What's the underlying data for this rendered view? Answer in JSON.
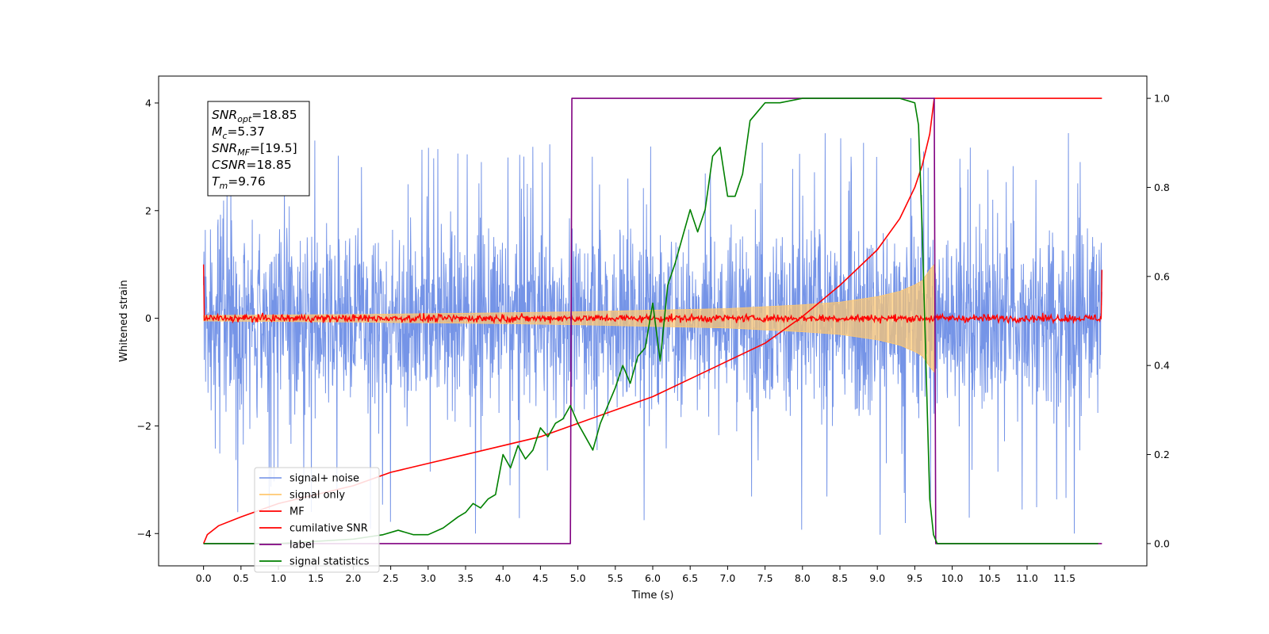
{
  "chart_data": {
    "type": "line",
    "xlabel": "Time (s)",
    "ylabel": "Whitened strain",
    "y2label": "",
    "xlim": [
      -0.6,
      12.6
    ],
    "ylim": [
      -4.6,
      4.5
    ],
    "y2lim": [
      -0.05,
      1.05
    ],
    "x_ticks": [
      "0.0",
      "0.5",
      "1.0",
      "1.5",
      "2.0",
      "2.5",
      "3.0",
      "3.5",
      "4.0",
      "4.5",
      "5.0",
      "5.5",
      "6.0",
      "6.5",
      "7.0",
      "7.5",
      "8.0",
      "8.5",
      "9.0",
      "9.5",
      "10.0",
      "10.5",
      "11.0",
      "11.5"
    ],
    "y_ticks": [
      -4,
      -2,
      0,
      2,
      4
    ],
    "y2_ticks": [
      "0.0",
      "0.2",
      "0.4",
      "0.6",
      "0.8",
      "1.0"
    ],
    "legend_position": "lower-left",
    "annotation": {
      "lines": [
        {
          "base": "SNR",
          "sub": "opt",
          "value": "=18.85"
        },
        {
          "base": "M",
          "sub": "c",
          "value": "=5.37"
        },
        {
          "base": "SNR",
          "sub": "MF",
          "value": "=[19.5]"
        },
        {
          "base": "CSNR",
          "sub": "",
          "value": "=18.85"
        },
        {
          "base": "T",
          "sub": "m",
          "value": "=9.76"
        }
      ]
    },
    "series": [
      {
        "name": "signal+ noise",
        "color": "#6e8ee6",
        "axis": "left",
        "kind": "noise_band",
        "x_range": [
          0.0,
          12.0
        ],
        "typical_range": [
          -2.2,
          2.4
        ],
        "extreme_range": [
          -4.05,
          3.45
        ]
      },
      {
        "name": "signal only",
        "color": "#ffc870",
        "axis": "left",
        "kind": "chirp_envelope",
        "x": [
          0.0,
          2.0,
          4.0,
          5.0,
          6.0,
          7.0,
          8.0,
          8.5,
          9.0,
          9.3,
          9.5,
          9.6,
          9.7,
          9.76
        ],
        "amplitude": [
          0.05,
          0.07,
          0.1,
          0.12,
          0.15,
          0.18,
          0.25,
          0.3,
          0.4,
          0.5,
          0.62,
          0.7,
          0.9,
          1.0
        ]
      },
      {
        "name": "MF",
        "color": "#ff0000",
        "axis": "left",
        "kind": "noise_line",
        "x_range": [
          0.0,
          12.0
        ],
        "typical_range": [
          -0.07,
          0.07
        ],
        "start_value": 1.0,
        "end_value": 0.9
      },
      {
        "name": "cumilative SNR",
        "color": "#ff0000",
        "axis": "right",
        "x": [
          0.0,
          0.05,
          0.2,
          0.5,
          1.0,
          1.5,
          2.0,
          2.5,
          3.0,
          3.5,
          4.0,
          4.5,
          5.0,
          5.5,
          6.0,
          6.5,
          7.0,
          7.5,
          8.0,
          8.5,
          9.0,
          9.3,
          9.5,
          9.6,
          9.7,
          9.76,
          12.0
        ],
        "y": [
          0.0,
          0.02,
          0.04,
          0.06,
          0.09,
          0.11,
          0.13,
          0.16,
          0.18,
          0.2,
          0.22,
          0.24,
          0.27,
          0.3,
          0.33,
          0.37,
          0.41,
          0.45,
          0.51,
          0.58,
          0.66,
          0.73,
          0.8,
          0.85,
          0.92,
          1.0,
          1.0
        ]
      },
      {
        "name": "label",
        "color": "#800080",
        "axis": "right",
        "x": [
          0.0,
          4.9,
          4.92,
          9.76,
          9.78,
          12.0
        ],
        "y": [
          0.0,
          0.0,
          1.0,
          1.0,
          0.0,
          0.0
        ]
      },
      {
        "name": "signal statistics",
        "color": "#008000",
        "axis": "right",
        "x": [
          0.0,
          0.3,
          0.6,
          1.0,
          1.5,
          2.0,
          2.2,
          2.4,
          2.6,
          2.8,
          3.0,
          3.2,
          3.4,
          3.5,
          3.6,
          3.7,
          3.8,
          3.9,
          4.0,
          4.1,
          4.2,
          4.3,
          4.4,
          4.5,
          4.6,
          4.7,
          4.8,
          4.9,
          5.0,
          5.1,
          5.2,
          5.3,
          5.4,
          5.5,
          5.6,
          5.7,
          5.8,
          5.9,
          6.0,
          6.1,
          6.2,
          6.3,
          6.4,
          6.5,
          6.6,
          6.7,
          6.8,
          6.9,
          7.0,
          7.1,
          7.2,
          7.3,
          7.4,
          7.5,
          7.7,
          8.0,
          8.5,
          9.0,
          9.3,
          9.5,
          9.55,
          9.6,
          9.65,
          9.7,
          9.75,
          9.8,
          9.85,
          9.9,
          10.0,
          11.0,
          11.95
        ],
        "y": [
          0.0,
          0.0,
          0.0,
          0.0,
          0.005,
          0.01,
          0.015,
          0.02,
          0.03,
          0.02,
          0.02,
          0.035,
          0.06,
          0.07,
          0.09,
          0.08,
          0.1,
          0.11,
          0.2,
          0.17,
          0.22,
          0.19,
          0.21,
          0.26,
          0.24,
          0.27,
          0.28,
          0.31,
          0.27,
          0.24,
          0.21,
          0.27,
          0.31,
          0.35,
          0.4,
          0.36,
          0.42,
          0.44,
          0.54,
          0.41,
          0.58,
          0.63,
          0.69,
          0.75,
          0.7,
          0.75,
          0.87,
          0.89,
          0.78,
          0.78,
          0.83,
          0.95,
          0.97,
          0.99,
          0.99,
          1.0,
          1.0,
          1.0,
          1.0,
          0.99,
          0.94,
          0.7,
          0.4,
          0.1,
          0.02,
          0.0,
          0.0,
          0.0,
          0.0,
          0.0,
          0.0
        ]
      }
    ]
  }
}
